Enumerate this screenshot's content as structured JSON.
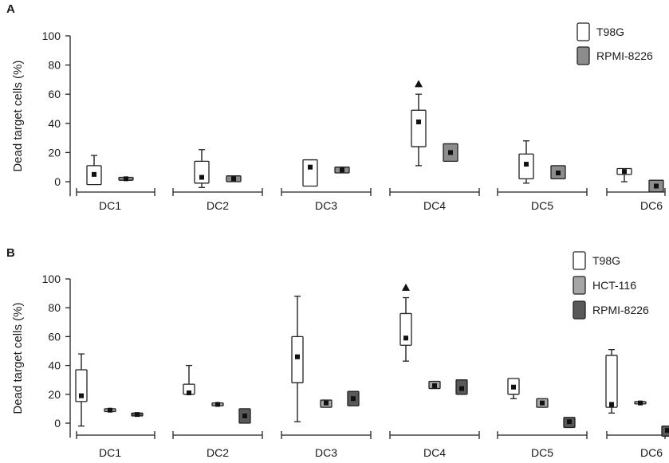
{
  "chart_data": [
    {
      "panel_label": "A",
      "type": "boxplot",
      "ylabel": "Dead target cells (%)",
      "ylim": [
        -10,
        100
      ],
      "yticks": [
        0,
        20,
        40,
        60,
        80,
        100
      ],
      "groups": [
        "DC1",
        "DC2",
        "DC3",
        "DC4",
        "DC5",
        "DC6"
      ],
      "legend_position": "top-right",
      "series": [
        {
          "name": "T98G",
          "fill": "#ffffff",
          "boxes": [
            {
              "group": "DC1",
              "whisker_low": -2,
              "q1": -2,
              "q3": 11,
              "whisker_high": 18,
              "mean": 5
            },
            {
              "group": "DC2",
              "whisker_low": -4,
              "q1": -1,
              "q3": 14,
              "whisker_high": 22,
              "mean": 3
            },
            {
              "group": "DC3",
              "whisker_low": -3,
              "q1": -3,
              "q3": 15,
              "whisker_high": 15,
              "mean": 10
            },
            {
              "group": "DC4",
              "whisker_low": 11,
              "q1": 24,
              "q3": 49,
              "whisker_high": 60,
              "mean": 41,
              "outlier": 67
            },
            {
              "group": "DC5",
              "whisker_low": -1,
              "q1": 2,
              "q3": 19,
              "whisker_high": 28,
              "mean": 12
            },
            {
              "group": "DC6",
              "whisker_low": 0,
              "q1": 5,
              "q3": 9,
              "whisker_high": 9,
              "mean": 7
            }
          ]
        },
        {
          "name": "RPMI-8226",
          "fill": "#8c8c8c",
          "boxes": [
            {
              "group": "DC1",
              "whisker_low": 1,
              "q1": 1,
              "q3": 3,
              "whisker_high": 3,
              "mean": 2
            },
            {
              "group": "DC2",
              "whisker_low": 0,
              "q1": 0,
              "q3": 4,
              "whisker_high": 4,
              "mean": 2
            },
            {
              "group": "DC3",
              "whisker_low": 6,
              "q1": 6,
              "q3": 10,
              "whisker_high": 10,
              "mean": 8
            },
            {
              "group": "DC4",
              "whisker_low": 14,
              "q1": 14,
              "q3": 26,
              "whisker_high": 26,
              "mean": 20
            },
            {
              "group": "DC5",
              "whisker_low": 2,
              "q1": 2,
              "q3": 11,
              "whisker_high": 11,
              "mean": 6
            },
            {
              "group": "DC6",
              "whisker_low": -7,
              "q1": -7,
              "q3": 1,
              "whisker_high": 1,
              "mean": -3
            }
          ]
        }
      ]
    },
    {
      "panel_label": "B",
      "type": "boxplot",
      "ylabel": "Dead target cells (%)",
      "ylim": [
        -10,
        100
      ],
      "yticks": [
        0,
        20,
        40,
        60,
        80,
        100
      ],
      "groups": [
        "DC1",
        "DC2",
        "DC3",
        "DC4",
        "DC5",
        "DC6"
      ],
      "legend_position": "top-right",
      "series": [
        {
          "name": "T98G",
          "fill": "#ffffff",
          "boxes": [
            {
              "group": "DC1",
              "whisker_low": -2,
              "q1": 15,
              "q3": 37,
              "whisker_high": 48,
              "mean": 19
            },
            {
              "group": "DC2",
              "whisker_low": 20,
              "q1": 20,
              "q3": 27,
              "whisker_high": 40,
              "mean": 21
            },
            {
              "group": "DC3",
              "whisker_low": 1,
              "q1": 28,
              "q3": 60,
              "whisker_high": 88,
              "mean": 46
            },
            {
              "group": "DC4",
              "whisker_low": 43,
              "q1": 54,
              "q3": 76,
              "whisker_high": 87,
              "mean": 59,
              "outlier": 94
            },
            {
              "group": "DC5",
              "whisker_low": 17,
              "q1": 20,
              "q3": 31,
              "whisker_high": 31,
              "mean": 25
            },
            {
              "group": "DC6",
              "whisker_low": 7,
              "q1": 11,
              "q3": 47,
              "whisker_high": 51,
              "mean": 13
            }
          ]
        },
        {
          "name": "HCT-116",
          "fill": "#a6a6a6",
          "boxes": [
            {
              "group": "DC1",
              "whisker_low": 8,
              "q1": 8,
              "q3": 10,
              "whisker_high": 10,
              "mean": 9
            },
            {
              "group": "DC2",
              "whisker_low": 12,
              "q1": 12,
              "q3": 14,
              "whisker_high": 14,
              "mean": 13
            },
            {
              "group": "DC3",
              "whisker_low": 11,
              "q1": 11,
              "q3": 16,
              "whisker_high": 16,
              "mean": 14
            },
            {
              "group": "DC4",
              "whisker_low": 24,
              "q1": 24,
              "q3": 29,
              "whisker_high": 29,
              "mean": 26
            },
            {
              "group": "DC5",
              "whisker_low": 11,
              "q1": 11,
              "q3": 17,
              "whisker_high": 17,
              "mean": 14
            },
            {
              "group": "DC6",
              "whisker_low": 14,
              "q1": 14,
              "q3": 15,
              "whisker_high": 15,
              "mean": 14
            }
          ]
        },
        {
          "name": "RPMI-8226",
          "fill": "#595959",
          "boxes": [
            {
              "group": "DC1",
              "whisker_low": 5,
              "q1": 5,
              "q3": 7,
              "whisker_high": 7,
              "mean": 6
            },
            {
              "group": "DC2",
              "whisker_low": 0,
              "q1": 0,
              "q3": 10,
              "whisker_high": 10,
              "mean": 5
            },
            {
              "group": "DC3",
              "whisker_low": 12,
              "q1": 12,
              "q3": 22,
              "whisker_high": 22,
              "mean": 17
            },
            {
              "group": "DC4",
              "whisker_low": 20,
              "q1": 20,
              "q3": 30,
              "whisker_high": 30,
              "mean": 24
            },
            {
              "group": "DC5",
              "whisker_low": -3,
              "q1": -3,
              "q3": 4,
              "whisker_high": 4,
              "mean": 1
            },
            {
              "group": "DC6",
              "whisker_low": -9,
              "q1": -9,
              "q3": -2,
              "whisker_high": -2,
              "mean": -5
            }
          ]
        }
      ]
    }
  ]
}
